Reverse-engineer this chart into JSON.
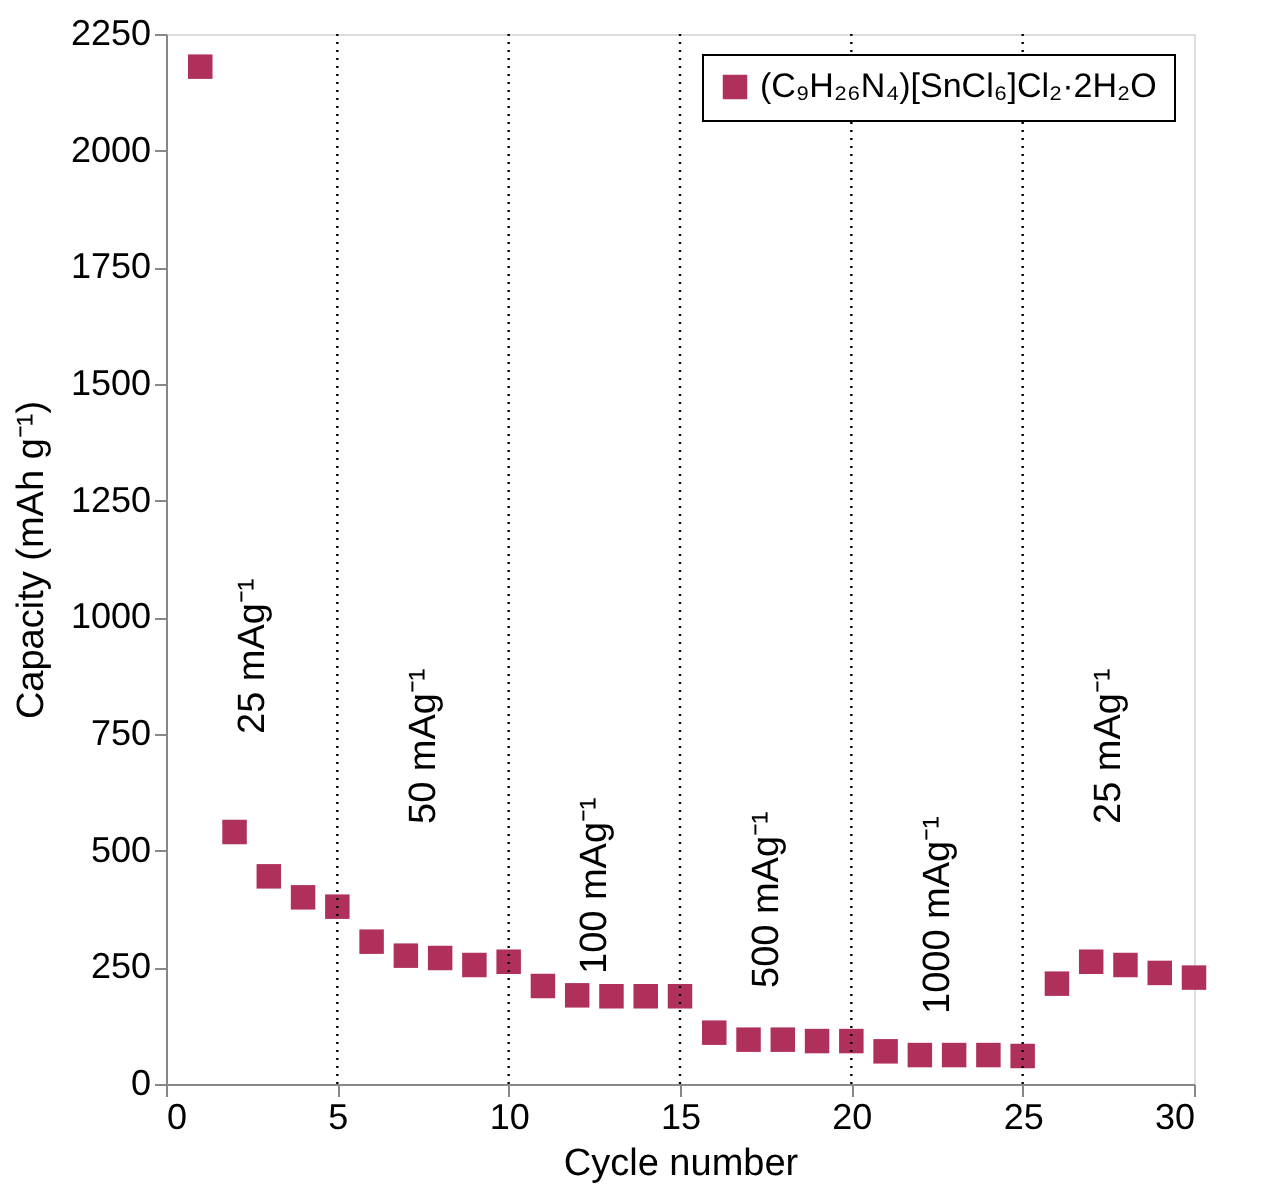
{
  "chart_data": {
    "type": "scatter",
    "xlabel": "Cycle number",
    "ylabel": "Capacity (mAh g⁻¹)",
    "x": [
      1,
      2,
      3,
      4,
      5,
      6,
      7,
      8,
      9,
      10,
      11,
      12,
      13,
      14,
      15,
      16,
      17,
      18,
      19,
      20,
      21,
      22,
      23,
      24,
      25,
      26,
      27,
      28,
      29,
      30
    ],
    "series": [
      {
        "name": "(C₉H₂₆N₄)[SnCl₆]Cl₂·2H₂O",
        "color": "#b0305c",
        "values": [
          2180,
          540,
          445,
          400,
          380,
          305,
          275,
          270,
          255,
          262,
          210,
          190,
          188,
          188,
          188,
          110,
          95,
          95,
          92,
          92,
          70,
          62,
          62,
          62,
          60,
          215,
          262,
          255,
          238,
          228
        ]
      }
    ],
    "xlim": [
      0,
      30
    ],
    "xticks": [
      0,
      5,
      10,
      15,
      20,
      25,
      30
    ],
    "ylim": [
      0,
      2250
    ],
    "yticks": [
      0,
      250,
      500,
      750,
      1000,
      1250,
      1500,
      1750,
      2000,
      2250
    ],
    "ref_lines": [
      {
        "axis": "x",
        "value": 5,
        "line_style": "dotted",
        "color": "#000000"
      },
      {
        "axis": "x",
        "value": 10,
        "line_style": "dotted",
        "color": "#000000"
      },
      {
        "axis": "x",
        "value": 15,
        "line_style": "dotted",
        "color": "#000000"
      },
      {
        "axis": "x",
        "value": 20,
        "line_style": "dotted",
        "color": "#000000"
      },
      {
        "axis": "x",
        "value": 25,
        "line_style": "dotted",
        "color": "#000000"
      }
    ],
    "annotations": [
      "25 mAg⁻¹",
      "50 mAg⁻¹",
      "100 mAg⁻¹",
      "500 mAg⁻¹",
      "1000 mAg⁻¹",
      "25 mAg⁻¹"
    ],
    "marker": "square",
    "grid": false,
    "legend": "top right"
  }
}
